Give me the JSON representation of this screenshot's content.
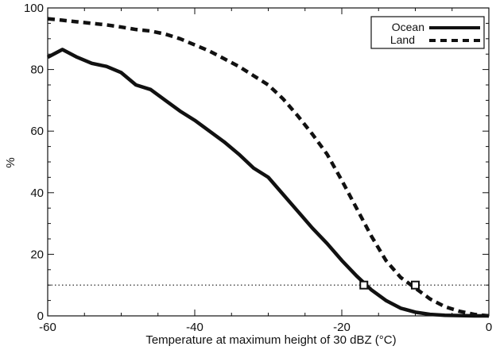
{
  "chart_data": {
    "type": "line",
    "title": "",
    "xlabel": "Temperature at maximum height of 30 dBZ (°C)",
    "ylabel": "%",
    "xlim": [
      -60,
      0
    ],
    "ylim": [
      0,
      100
    ],
    "xticks": [
      -60,
      -40,
      -20,
      0
    ],
    "yticks": [
      0,
      20,
      40,
      60,
      80,
      100
    ],
    "legend_position": "top-right",
    "grid": false,
    "reference_line": {
      "y": 10,
      "style": "dotted"
    },
    "series": [
      {
        "name": "Ocean",
        "style": "solid",
        "color": "#111111",
        "x": [
          -60,
          -58,
          -56,
          -54,
          -52,
          -50,
          -48,
          -46,
          -44,
          -42,
          -40,
          -38,
          -36,
          -34,
          -32,
          -30,
          -28,
          -26,
          -24,
          -22,
          -20,
          -18,
          -16,
          -14,
          -12,
          -10,
          -8,
          -6,
          -4,
          -2,
          0
        ],
        "y": [
          84,
          86.5,
          84,
          82,
          81,
          79,
          75,
          73.5,
          70,
          66.5,
          63.5,
          60,
          56.5,
          52.5,
          48,
          45,
          39.5,
          34,
          28.5,
          23.5,
          18,
          13,
          8.5,
          5,
          2.5,
          1.2,
          0.5,
          0.2,
          0.1,
          0,
          0
        ],
        "markers": [
          {
            "x": -17,
            "y": 10
          }
        ]
      },
      {
        "name": "Land",
        "style": "dashed",
        "color": "#111111",
        "x": [
          -60,
          -58,
          -56,
          -54,
          -52,
          -50,
          -48,
          -46,
          -44,
          -42,
          -40,
          -38,
          -36,
          -34,
          -32,
          -30,
          -28,
          -26,
          -24,
          -22,
          -20,
          -18,
          -16,
          -14,
          -12,
          -10,
          -8,
          -6,
          -4,
          -2,
          0
        ],
        "y": [
          96.5,
          96,
          95.5,
          95,
          94.5,
          93.8,
          93,
          92.5,
          91.5,
          90,
          88,
          86,
          83.5,
          81,
          78,
          75,
          70.5,
          65,
          59,
          52.5,
          44,
          35,
          26,
          18,
          12.5,
          9,
          5.5,
          3,
          1.5,
          0.5,
          0
        ],
        "markers": [
          {
            "x": -10,
            "y": 10
          }
        ]
      }
    ]
  }
}
